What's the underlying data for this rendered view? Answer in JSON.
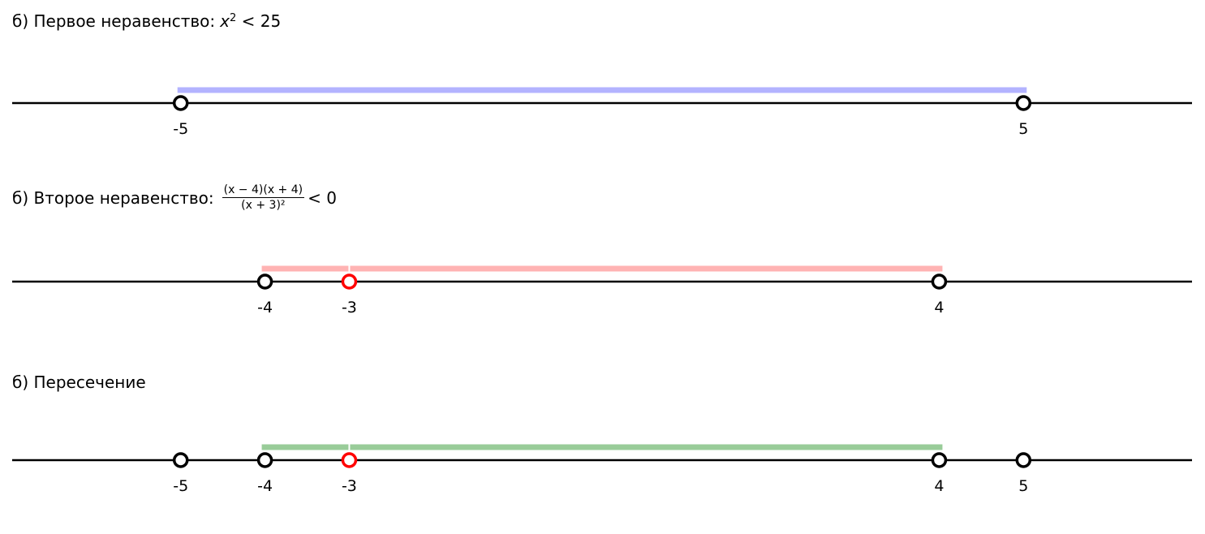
{
  "chart_data": [
    {
      "type": "number-line",
      "title": "б) Первое неравенство:",
      "math": {
        "lhs_var": "x",
        "lhs_exp": "2",
        "rel": "< 25"
      },
      "xlim": [
        -7,
        7
      ],
      "interval": {
        "from": -5,
        "to": 5,
        "color": "#b3b3ff",
        "gaps": []
      },
      "points": [
        {
          "x": -5,
          "label": "-5",
          "color": "#000000",
          "open": true
        },
        {
          "x": 5,
          "label": "5",
          "color": "#000000",
          "open": true
        }
      ]
    },
    {
      "type": "number-line",
      "title": "б) Второе неравенство:",
      "math": {
        "numerator": "(x − 4)(x + 4)",
        "denominator": "(x + 3)²",
        "rel": "< 0"
      },
      "xlim": [
        -7,
        7
      ],
      "interval": {
        "from": -4,
        "to": 4,
        "color": "#ffb3b3",
        "gaps": [
          -3
        ]
      },
      "points": [
        {
          "x": -4,
          "label": "-4",
          "color": "#000000",
          "open": true
        },
        {
          "x": -3,
          "label": "-3",
          "color": "#ff0000",
          "open": true
        },
        {
          "x": 4,
          "label": "4",
          "color": "#000000",
          "open": true
        }
      ]
    },
    {
      "type": "number-line",
      "title": "б) Пересечение",
      "xlim": [
        -7,
        7
      ],
      "interval": {
        "from": -4,
        "to": 4,
        "color": "#99cc99",
        "gaps": [
          -3
        ]
      },
      "points": [
        {
          "x": -5,
          "label": "-5",
          "color": "#000000",
          "open": true
        },
        {
          "x": -4,
          "label": "-4",
          "color": "#000000",
          "open": true
        },
        {
          "x": -3,
          "label": "-3",
          "color": "#ff0000",
          "open": true
        },
        {
          "x": 4,
          "label": "4",
          "color": "#000000",
          "open": true
        },
        {
          "x": 5,
          "label": "5",
          "color": "#000000",
          "open": true
        }
      ]
    }
  ]
}
